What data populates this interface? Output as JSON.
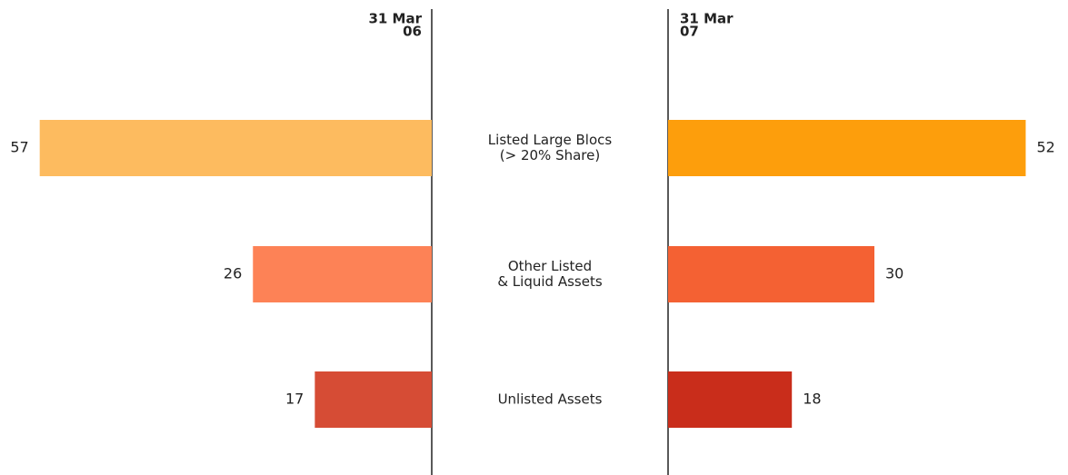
{
  "chart_data": {
    "type": "butterfly-bar",
    "categories": [
      [
        "Listed Large Blocs",
        "(> 20% Share)"
      ],
      [
        "Other Listed",
        "& Liquid Assets"
      ],
      [
        "Unlisted Assets"
      ]
    ],
    "series": [
      {
        "name": [
          "31 Mar",
          "06"
        ],
        "colors": [
          "#fdbb5f",
          "#fd8256",
          "#d64c35"
        ],
        "values": [
          57,
          26,
          17
        ]
      },
      {
        "name": [
          "31 Mar",
          "07"
        ],
        "colors": [
          "#fd9e0c",
          "#f46133",
          "#c92d1b"
        ],
        "values": [
          52,
          30,
          18
        ]
      }
    ],
    "xlim": [
      0,
      60
    ]
  }
}
